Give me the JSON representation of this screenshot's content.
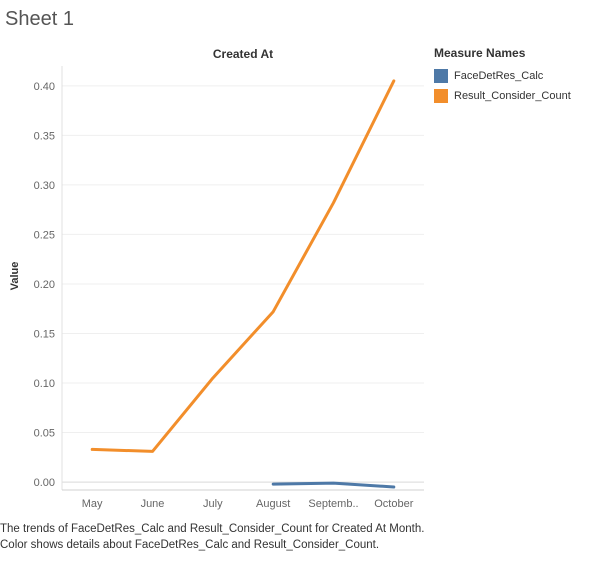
{
  "sheet": {
    "title": "Sheet 1"
  },
  "caption": "The trends of FaceDetRes_Calc and Result_Consider_Count for Created At Month.  Color shows details about FaceDetRes_Calc and Result_Consider_Count.",
  "legend": {
    "title": "Measure Names",
    "items": [
      {
        "label": "FaceDetRes_Calc",
        "color": "#4e79a7"
      },
      {
        "label": "Result_Consider_Count",
        "color": "#f28e2b"
      }
    ]
  },
  "chart_data": {
    "type": "line",
    "title": "Created At",
    "xlabel": "",
    "ylabel": "Value",
    "categories": [
      "May",
      "June",
      "July",
      "August",
      "Septemb..",
      "October"
    ],
    "ylim": [
      -0.008,
      0.42
    ],
    "yticks": [
      0.0,
      0.05,
      0.1,
      0.15,
      0.2,
      0.25,
      0.3,
      0.35,
      0.4
    ],
    "ytick_labels": [
      "0.00",
      "0.05",
      "0.10",
      "0.15",
      "0.20",
      "0.25",
      "0.30",
      "0.35",
      "0.40"
    ],
    "grid": true,
    "legend_position": "right",
    "series": [
      {
        "name": "FaceDetRes_Calc",
        "color": "#4e79a7",
        "values": [
          null,
          null,
          null,
          -0.002,
          -0.001,
          -0.005
        ]
      },
      {
        "name": "Result_Consider_Count",
        "color": "#f28e2b",
        "values": [
          0.033,
          0.031,
          0.105,
          0.172,
          0.282,
          0.405
        ]
      }
    ]
  }
}
